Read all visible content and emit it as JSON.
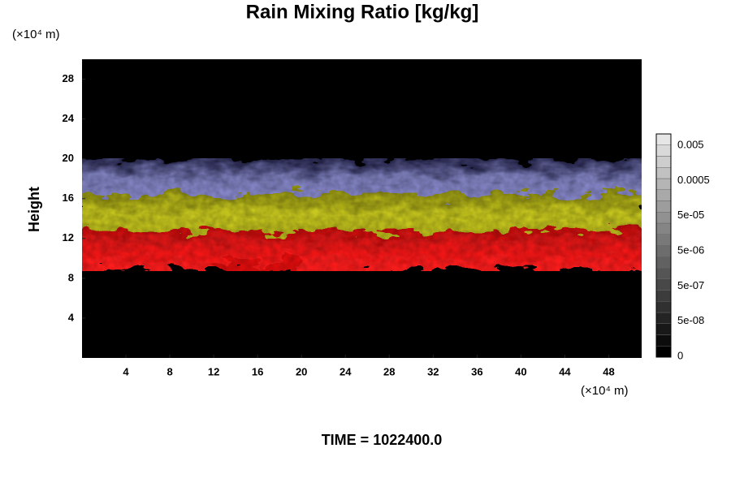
{
  "chart_data": {
    "type": "image",
    "title": "Rain Mixing Ratio [kg/kg]",
    "y_label": "Height",
    "y_unit": "(×10⁴ m)",
    "x_unit": "(×10⁴ m)",
    "xlim": [
      0,
      51
    ],
    "xticks": [
      4,
      8,
      12,
      16,
      20,
      24,
      28,
      32,
      36,
      40,
      44,
      48
    ],
    "ylim": [
      0,
      30
    ],
    "yticks": [
      4,
      8,
      12,
      16,
      20,
      24,
      28
    ],
    "colorbar_labels": [
      "0.005",
      "0.0005",
      "5e-05",
      "5e-06",
      "5e-07",
      "5e-08",
      "0"
    ],
    "footer": "TIME = 1022400.0"
  }
}
